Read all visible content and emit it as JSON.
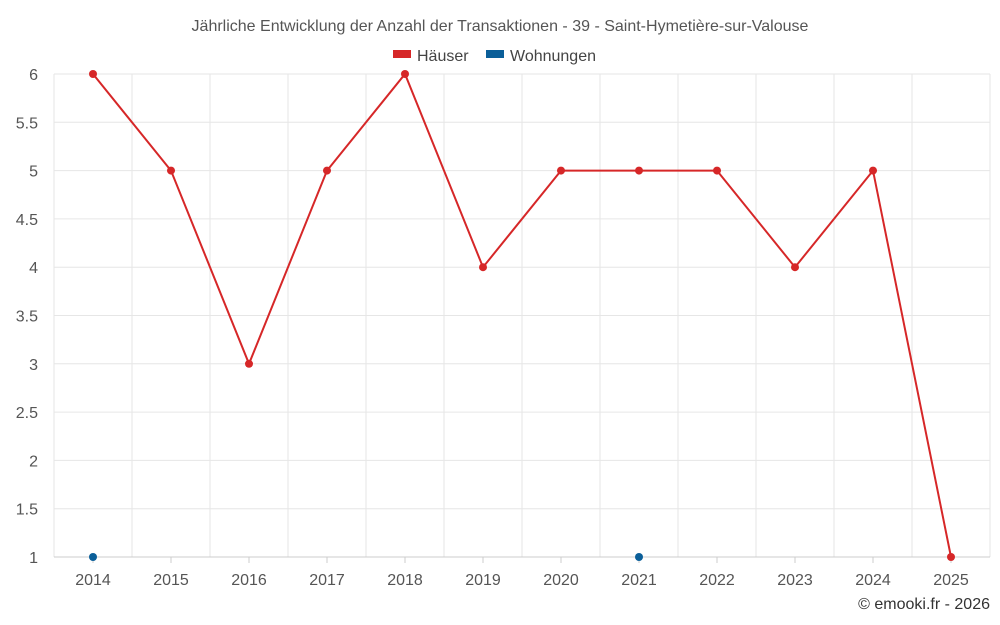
{
  "chart_data": {
    "type": "line",
    "title": "Jährliche Entwicklung der Anzahl der Transaktionen - 39 - Saint-Hymetière-sur-Valouse",
    "xlabel": "",
    "ylabel": "",
    "categories": [
      "2014",
      "2015",
      "2016",
      "2017",
      "2018",
      "2019",
      "2020",
      "2021",
      "2022",
      "2023",
      "2024",
      "2025"
    ],
    "y_ticks": [
      "1",
      "1.5",
      "2",
      "2.5",
      "3",
      "3.5",
      "4",
      "4.5",
      "5",
      "5.5",
      "6"
    ],
    "ylim": [
      1,
      6
    ],
    "grid": true,
    "legend_position": "top-center",
    "series": [
      {
        "name": "Häuser",
        "color": "#d62728",
        "values": [
          6,
          5,
          3,
          5,
          6,
          4,
          5,
          5,
          5,
          4,
          5,
          1
        ],
        "line": true
      },
      {
        "name": "Wohnungen",
        "color": "#0b5f99",
        "values": [
          1,
          null,
          null,
          null,
          null,
          null,
          null,
          1,
          null,
          null,
          null,
          null
        ],
        "line": false
      }
    ],
    "credit": "© emooki.fr - 2026"
  }
}
